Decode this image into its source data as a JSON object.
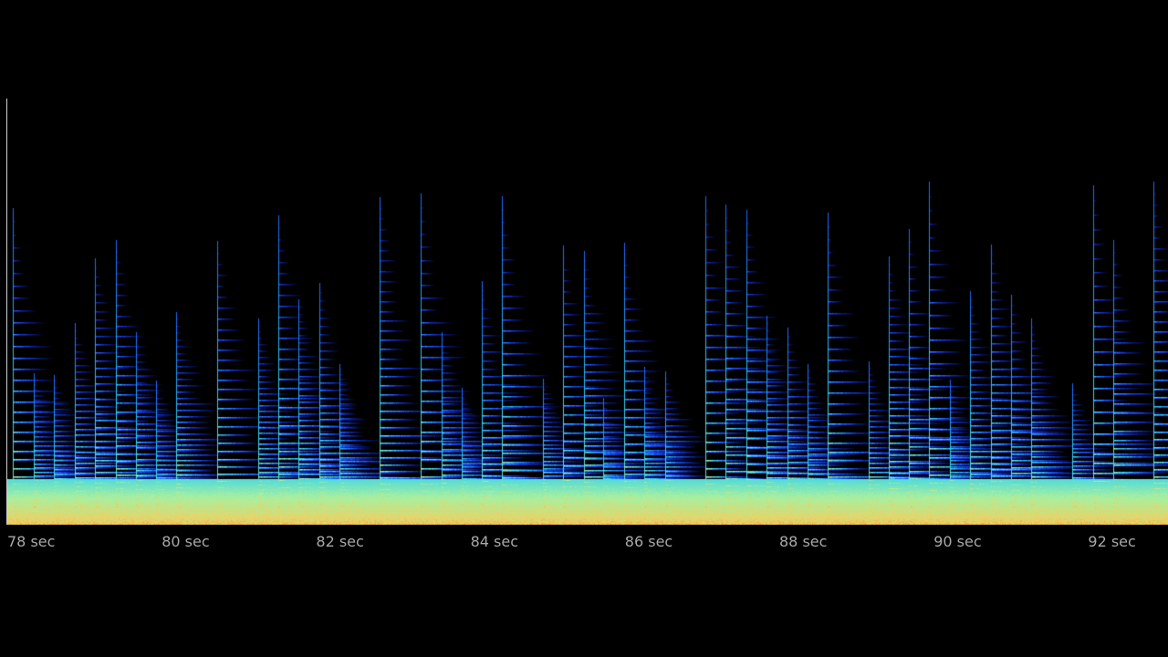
{
  "chart_data": {
    "type": "heatmap",
    "subtype": "spectrogram",
    "title": "",
    "xlabel": "",
    "ylabel": "",
    "x_unit": "sec",
    "xlim": [
      78,
      93.08
    ],
    "x_ticks": [
      78,
      80,
      82,
      84,
      86,
      88,
      90,
      92
    ],
    "tick_labels": [
      "78 sec",
      "80 sec",
      "82 sec",
      "84 sec",
      "86 sec",
      "88 sec",
      "90 sec",
      "92 sec"
    ],
    "onsets_sec": [
      78.07,
      78.34,
      78.6,
      78.87,
      79.13,
      79.41,
      79.67,
      79.93,
      80.19,
      80.72,
      81.25,
      81.51,
      81.77,
      82.04,
      82.3,
      82.82,
      83.35,
      83.63,
      83.89,
      84.15,
      84.41,
      84.94,
      85.2,
      85.47,
      85.72,
      85.99,
      86.25,
      86.52,
      87.04,
      87.3,
      87.57,
      87.83,
      88.11,
      88.37,
      88.63,
      89.16,
      89.42,
      89.68,
      89.94,
      90.21,
      90.47,
      90.74,
      91.0,
      91.26,
      91.79,
      92.07,
      92.33,
      92.85
    ],
    "colormap": [
      "#000000",
      "#0a1a8c",
      "#1e5aff",
      "#2fd2f0",
      "#a8f0a0",
      "#f0d060",
      "#e05020"
    ],
    "grid": false,
    "legend": "none"
  }
}
